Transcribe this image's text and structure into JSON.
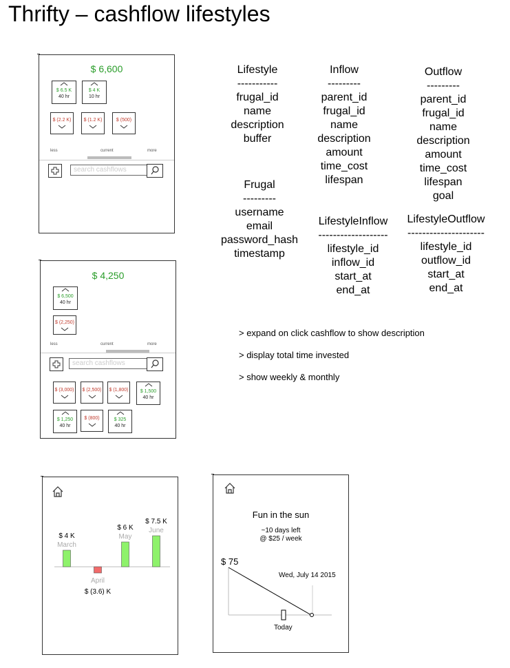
{
  "title": "Thrifty – cashflow lifestyles",
  "phone1": {
    "total": "$ 6,600",
    "inflows": [
      {
        "amount": "$ 6.5 K",
        "hours": "40 hr"
      },
      {
        "amount": "$ 4 K",
        "hours": "10 hr"
      }
    ],
    "outflows": [
      {
        "amount": "$ (2.2 K)"
      },
      {
        "amount": "$ (1.2 K)"
      },
      {
        "amount": "$ (500)"
      }
    ],
    "slider": {
      "less": "less",
      "current": "current",
      "more": "more"
    },
    "search_placeholder": "search cashflows"
  },
  "phone2": {
    "total": "$ 4,250",
    "inflows": [
      {
        "amount": "$ 6,500",
        "hours": "40 hr"
      }
    ],
    "outflows": [
      {
        "amount": "$ (2,250)"
      }
    ],
    "slider": {
      "less": "less",
      "current": "current",
      "more": "more"
    },
    "search_placeholder": "search cashflows",
    "results_row1": [
      {
        "amount": "$ (3,000)",
        "kind": "out"
      },
      {
        "amount": "$ (2,500)",
        "kind": "out"
      },
      {
        "amount": "$ (1,800)",
        "kind": "out"
      },
      {
        "amount": "$ 1,500",
        "hours": "40 hr",
        "kind": "in"
      }
    ],
    "results_row2": [
      {
        "amount": "$ 1,250",
        "hours": "40 hr",
        "kind": "in"
      },
      {
        "amount": "$ (800)",
        "kind": "out"
      },
      {
        "amount": "$ 325",
        "hours": "40 hr",
        "kind": "in"
      }
    ]
  },
  "schema": {
    "lifestyle": {
      "name": "Lifestyle",
      "sep": "-----------",
      "fields": [
        "frugal_id",
        "name",
        "description",
        "buffer"
      ]
    },
    "inflow": {
      "name": "Inflow",
      "sep": "---------",
      "fields": [
        "parent_id",
        "frugal_id",
        "name",
        "description",
        "amount",
        "time_cost",
        "lifespan"
      ]
    },
    "outflow": {
      "name": "Outflow",
      "sep": "---------",
      "fields": [
        "parent_id",
        "frugal_id",
        "name",
        "description",
        "amount",
        "time_cost",
        "lifespan",
        "goal"
      ]
    },
    "frugal": {
      "name": "Frugal",
      "sep": "---------",
      "fields": [
        "username",
        "email",
        "password_hash",
        "timestamp"
      ]
    },
    "lifestyle_inflow": {
      "name": "LifestyleInflow",
      "sep": "-------------------",
      "fields": [
        "lifestyle_id",
        "inflow_id",
        "start_at",
        "end_at"
      ]
    },
    "lifestyle_outflow": {
      "name": "LifestyleOutflow",
      "sep": "---------------------",
      "fields": [
        "lifestyle_id",
        "outflow_id",
        "start_at",
        "end_at"
      ]
    }
  },
  "notes": [
    "> expand on click cashflow to show description",
    "> display total time invested",
    "> show weekly & monthly"
  ],
  "chart_data": {
    "type": "bar",
    "categories": [
      "March",
      "April",
      "May",
      "June"
    ],
    "values": [
      4,
      -3.6,
      6,
      7.5
    ],
    "data_labels": [
      "$ 4 K",
      "$ (3.6) K",
      "$ 6 K",
      "$ 7.5 K"
    ],
    "colors": {
      "positive": "#8ef26b",
      "negative": "#f26b6b"
    }
  },
  "goal": {
    "name": "Fun in the sun",
    "days_left": "~10 days left",
    "rate": "@ $25 / week",
    "amount": "$ 75",
    "date": "Wed, July 14 2015",
    "today": "Today"
  }
}
